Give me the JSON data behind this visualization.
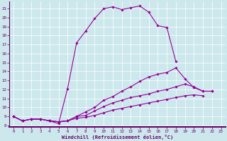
{
  "xlabel": "Windchill (Refroidissement éolien,°C)",
  "background_color": "#cce8ec",
  "grid_color": "#aadddd",
  "line_color": "#990099",
  "spine_color": "#660066",
  "xlim": [
    -0.5,
    23.5
  ],
  "ylim": [
    7.8,
    21.8
  ],
  "xtick_vals": [
    0,
    1,
    2,
    3,
    4,
    5,
    6,
    7,
    8,
    9,
    10,
    11,
    12,
    13,
    14,
    15,
    16,
    17,
    18,
    19,
    20,
    21,
    22,
    23
  ],
  "ytick_vals": [
    8,
    9,
    10,
    11,
    12,
    13,
    14,
    15,
    16,
    17,
    18,
    19,
    20,
    21
  ],
  "series": [
    {
      "x": [
        0,
        1,
        2,
        3,
        4,
        5,
        6,
        7,
        8,
        9,
        10,
        11,
        12,
        13,
        14,
        15,
        16,
        17,
        18
      ],
      "y": [
        9.0,
        8.5,
        8.7,
        8.7,
        8.5,
        8.2,
        12.1,
        17.2,
        18.5,
        19.9,
        21.0,
        21.2,
        20.9,
        21.1,
        21.3,
        20.6,
        19.1,
        18.9,
        15.1
      ]
    },
    {
      "x": [
        0,
        1,
        2,
        3,
        4,
        5,
        6,
        7,
        8,
        9,
        10,
        11,
        12,
        13,
        14,
        15,
        16,
        17,
        18,
        19,
        20,
        21,
        22
      ],
      "y": [
        9.0,
        8.5,
        8.7,
        8.7,
        8.5,
        8.4,
        8.5,
        9.0,
        9.5,
        10.0,
        10.8,
        11.2,
        11.8,
        12.3,
        12.9,
        13.4,
        13.7,
        13.9,
        14.4,
        13.2,
        12.2,
        11.8,
        11.8
      ]
    },
    {
      "x": [
        0,
        1,
        2,
        3,
        4,
        5,
        6,
        7,
        8,
        9,
        10,
        11,
        12,
        13,
        14,
        15,
        16,
        17,
        18,
        19,
        20,
        21,
        22
      ],
      "y": [
        9.0,
        8.5,
        8.7,
        8.7,
        8.5,
        8.4,
        8.5,
        9.0,
        9.1,
        9.6,
        10.1,
        10.5,
        10.8,
        11.1,
        11.3,
        11.5,
        11.8,
        12.0,
        12.3,
        12.6,
        12.3,
        11.8,
        11.8
      ]
    },
    {
      "x": [
        0,
        1,
        2,
        3,
        4,
        5,
        6,
        7,
        8,
        9,
        10,
        11,
        12,
        13,
        14,
        15,
        16,
        17,
        18,
        19,
        20,
        21
      ],
      "y": [
        9.0,
        8.5,
        8.7,
        8.7,
        8.5,
        8.4,
        8.5,
        8.8,
        8.9,
        9.1,
        9.4,
        9.7,
        9.9,
        10.1,
        10.3,
        10.5,
        10.7,
        10.9,
        11.1,
        11.3,
        11.4,
        11.3
      ]
    }
  ]
}
